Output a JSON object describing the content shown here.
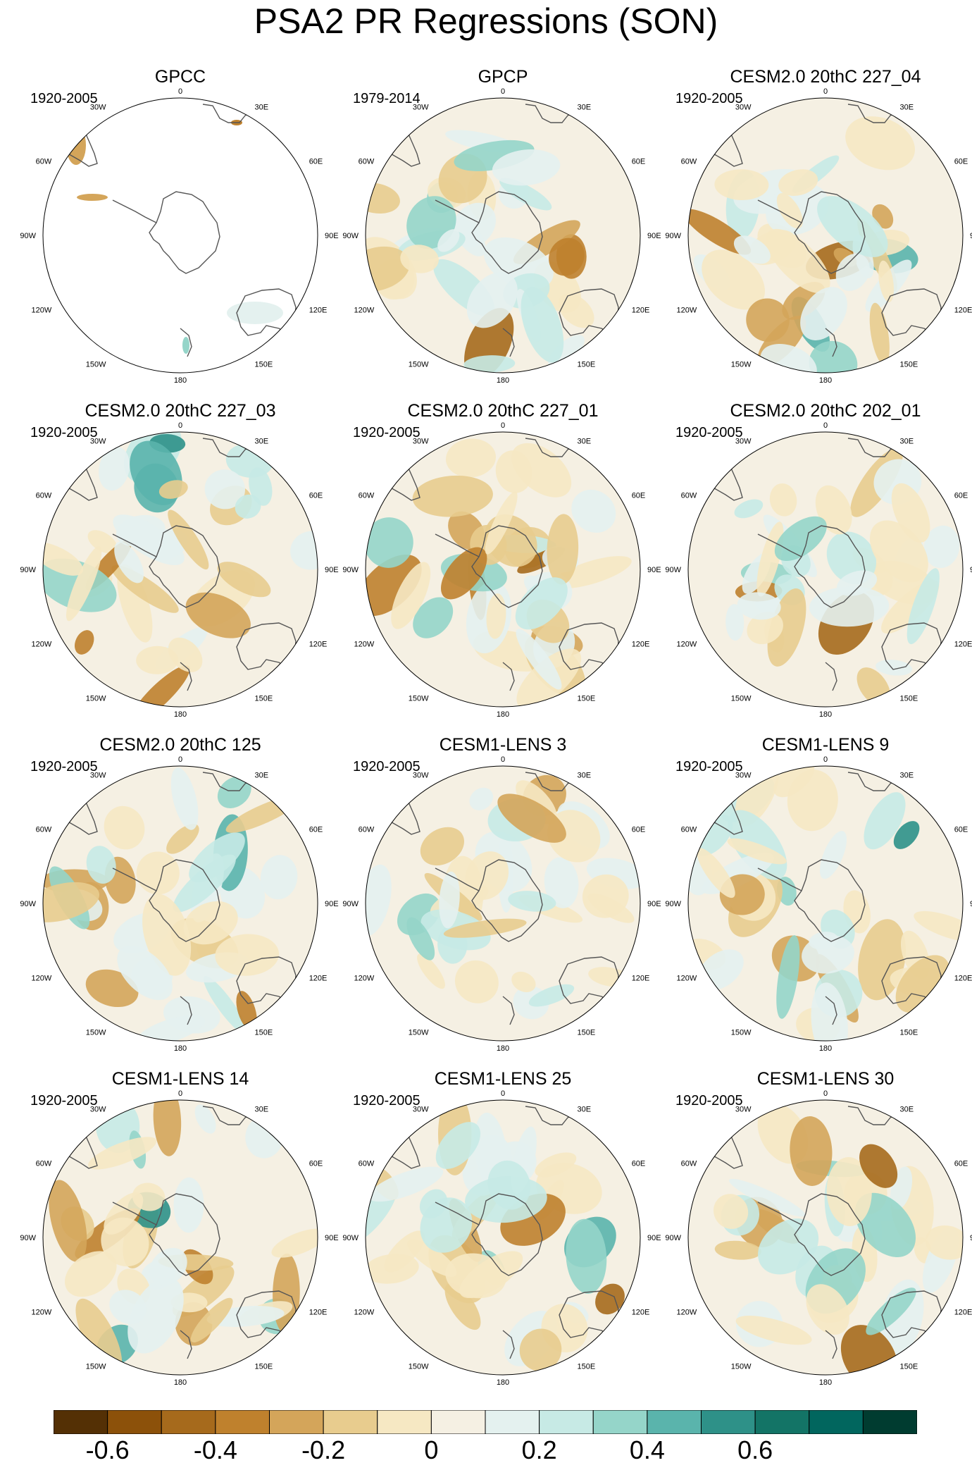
{
  "title": "PSA2 PR Regressions (SON)",
  "longitude_labels": [
    "0",
    "30E",
    "60E",
    "90E",
    "120E",
    "150E",
    "180",
    "150W",
    "120W",
    "90W",
    "60W",
    "30W"
  ],
  "panels": [
    {
      "title": "GPCC",
      "period": "1920-2005",
      "coverage": "land-only"
    },
    {
      "title": "GPCP",
      "period": "1979-2014",
      "coverage": "full"
    },
    {
      "title": "CESM2.0 20thC 227_04",
      "period": "1920-2005",
      "coverage": "full"
    },
    {
      "title": "CESM2.0 20thC 227_03",
      "period": "1920-2005",
      "coverage": "full"
    },
    {
      "title": "CESM2.0 20thC 227_01",
      "period": "1920-2005",
      "coverage": "full"
    },
    {
      "title": "CESM2.0 20thC 202_01",
      "period": "1920-2005",
      "coverage": "full"
    },
    {
      "title": "CESM2.0 20thC 125",
      "period": "1920-2005",
      "coverage": "full"
    },
    {
      "title": "CESM1-LENS 3",
      "period": "1920-2005",
      "coverage": "full"
    },
    {
      "title": "CESM1-LENS 9",
      "period": "1920-2005",
      "coverage": "full"
    },
    {
      "title": "CESM1-LENS 14",
      "period": "1920-2005",
      "coverage": "full"
    },
    {
      "title": "CESM1-LENS 25",
      "period": "1920-2005",
      "coverage": "full"
    },
    {
      "title": "CESM1-LENS 30",
      "period": "1920-2005",
      "coverage": "full"
    }
  ],
  "colorbar": {
    "colors": [
      "#543005",
      "#8c510a",
      "#a66a1c",
      "#bf812d",
      "#d4a55a",
      "#e8cc8e",
      "#f6e8c3",
      "#f5f0e3",
      "#e4f1ef",
      "#c7eae5",
      "#95d5c9",
      "#5ab4ac",
      "#2e9188",
      "#137466",
      "#01665e",
      "#003c30"
    ],
    "labels": [
      "-0.6",
      "-0.4",
      "-0.2",
      "0",
      "0.2",
      "0.4",
      "0.6"
    ]
  }
}
